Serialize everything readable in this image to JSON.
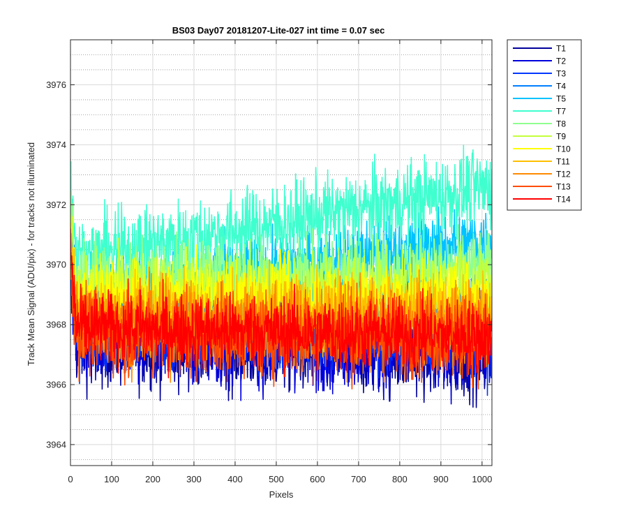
{
  "chart_data": {
    "type": "line",
    "title": "BS03 Day07 20181207-Lite-027 int time = 0.07 sec",
    "xlabel": "Pixels",
    "ylabel": "Track Mean Signal (ADU/pix) - for tracks not illuminated",
    "xlim": [
      0,
      1024
    ],
    "ylim": [
      3963.3,
      3977.5
    ],
    "x_ticks": [
      0,
      100,
      200,
      300,
      400,
      500,
      600,
      700,
      800,
      900,
      1000
    ],
    "y_ticks": [
      3964,
      3966,
      3968,
      3970,
      3972,
      3974,
      3976
    ],
    "grid": true,
    "minor_grid": true,
    "legend_position": "outside-right",
    "series": [
      {
        "name": "T1",
        "color": "#00009a",
        "mean_start": 3967.4,
        "mean_end": 3967.0,
        "noise": 1.2
      },
      {
        "name": "T2",
        "color": "#0000dd",
        "mean_start": 3967.5,
        "mean_end": 3967.1,
        "noise": 1.2
      },
      {
        "name": "T3",
        "color": "#0036ff",
        "mean_start": 3967.8,
        "mean_end": 3967.6,
        "noise": 1.1
      },
      {
        "name": "T4",
        "color": "#007fff",
        "mean_start": 3968.5,
        "mean_end": 3968.8,
        "noise": 1.1
      },
      {
        "name": "T5",
        "color": "#00c2ff",
        "mean_start": 3969.0,
        "mean_end": 3970.8,
        "noise": 1.0
      },
      {
        "name": "T7",
        "color": "#3fffcf",
        "mean_start": 3970.2,
        "mean_end": 3972.6,
        "noise": 1.1
      },
      {
        "name": "T8",
        "color": "#8fff8f",
        "mean_start": 3969.6,
        "mean_end": 3969.9,
        "noise": 1.0
      },
      {
        "name": "T9",
        "color": "#c4ff3b",
        "mean_start": 3969.2,
        "mean_end": 3969.3,
        "noise": 1.0
      },
      {
        "name": "T10",
        "color": "#ffff00",
        "mean_start": 3968.9,
        "mean_end": 3968.9,
        "noise": 1.0
      },
      {
        "name": "T11",
        "color": "#ffbf00",
        "mean_start": 3968.4,
        "mean_end": 3968.3,
        "noise": 1.1
      },
      {
        "name": "T12",
        "color": "#ff8a00",
        "mean_start": 3968.0,
        "mean_end": 3967.9,
        "noise": 1.2
      },
      {
        "name": "T13",
        "color": "#ff4a00",
        "mean_start": 3967.8,
        "mean_end": 3967.6,
        "noise": 1.2
      },
      {
        "name": "T14",
        "color": "#ff0000",
        "mean_start": 3967.9,
        "mean_end": 3967.6,
        "noise": 1.0
      }
    ]
  }
}
